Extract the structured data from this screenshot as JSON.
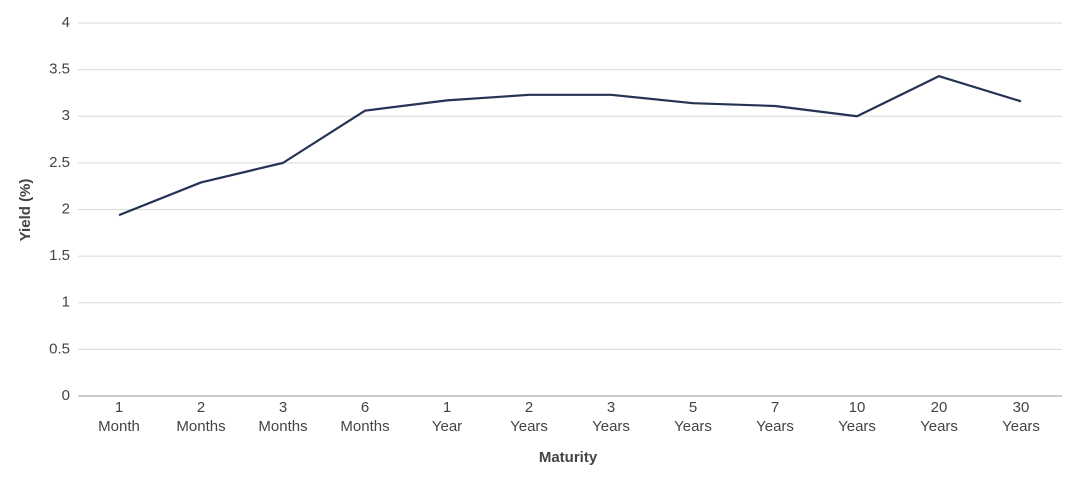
{
  "chart_data": {
    "type": "line",
    "x_label": "Maturity",
    "y_label": "Yield (%)",
    "categories": [
      "1 Month",
      "2 Months",
      "3 Months",
      "6 Months",
      "1 Year",
      "2 Years",
      "3 Years",
      "5 Years",
      "7 Years",
      "10 Years",
      "20 Years",
      "30 Years"
    ],
    "values": [
      1.94,
      2.29,
      2.5,
      3.06,
      3.17,
      3.23,
      3.23,
      3.14,
      3.11,
      3.0,
      3.43,
      3.16
    ],
    "color": "#253354",
    "ylim": [
      0,
      4
    ],
    "yticks": [
      0,
      0.5,
      1,
      1.5,
      2,
      2.5,
      3,
      3.5,
      4
    ],
    "grid": true
  }
}
